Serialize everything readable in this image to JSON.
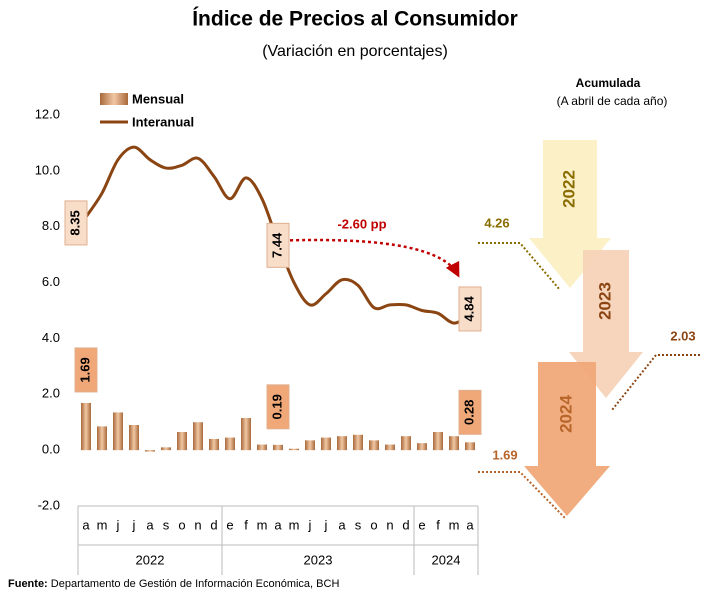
{
  "chart_data": {
    "type": "bar_line",
    "title": "Índice de Precios al Consumidor",
    "subtitle": "(Variación en porcentajes)",
    "categories": [
      "a",
      "m",
      "j",
      "j",
      "a",
      "s",
      "o",
      "n",
      "d",
      "e",
      "f",
      "m",
      "a",
      "m",
      "j",
      "j",
      "a",
      "s",
      "o",
      "n",
      "d",
      "e",
      "f",
      "m",
      "a"
    ],
    "year_groups": [
      {
        "label": "2022",
        "count": 9
      },
      {
        "label": "2023",
        "count": 12
      },
      {
        "label": "2024",
        "count": 4
      }
    ],
    "series": [
      {
        "name": "Mensual",
        "type": "bar",
        "color": "#c98b5c",
        "values": [
          1.69,
          0.85,
          1.35,
          0.9,
          -0.05,
          0.1,
          0.65,
          1.0,
          0.4,
          0.45,
          1.15,
          0.2,
          0.19,
          0.05,
          0.35,
          0.45,
          0.5,
          0.55,
          0.35,
          0.2,
          0.5,
          0.25,
          0.65,
          0.5,
          0.28
        ],
        "labeled": [
          0,
          12,
          24
        ]
      },
      {
        "name": "Interanual",
        "type": "line",
        "color": "#8b4513",
        "values": [
          8.35,
          9.2,
          10.4,
          10.85,
          10.4,
          10.1,
          10.2,
          10.45,
          9.8,
          9.0,
          9.75,
          9.0,
          7.44,
          6.0,
          5.2,
          5.6,
          6.1,
          5.9,
          5.1,
          5.2,
          5.2,
          5.0,
          4.9,
          4.55,
          4.84
        ],
        "labeled": [
          0,
          12,
          24
        ]
      }
    ],
    "annotation": "-2.60 pp",
    "ylim": [
      -2,
      12
    ],
    "yticks": [
      {
        "value": -2,
        "label": "-2.0"
      },
      {
        "value": 0,
        "label": "0.0"
      },
      {
        "value": 2,
        "label": "2.0"
      },
      {
        "value": 4,
        "label": "4.0"
      },
      {
        "value": 6,
        "label": "6.0"
      },
      {
        "value": 8,
        "label": "8.0"
      },
      {
        "value": 10,
        "label": "10.0"
      },
      {
        "value": 12,
        "label": "12.0"
      }
    ],
    "legend": "top-left",
    "accumulated": {
      "title": "Acumulada",
      "subtitle": "(A abril de cada año)",
      "categories": [
        "2022",
        "2023",
        "2024"
      ],
      "values": [
        4.26,
        2.03,
        1.69
      ],
      "colors": [
        "#fcefc4",
        "#f6d3b8",
        "#f0a878"
      ],
      "label_colors": [
        "#8a6d00",
        "#8b4513",
        "#b8652a"
      ]
    },
    "source_label": "Fuente:",
    "source": "Departamento de Gestión de Información Económica, BCH"
  }
}
